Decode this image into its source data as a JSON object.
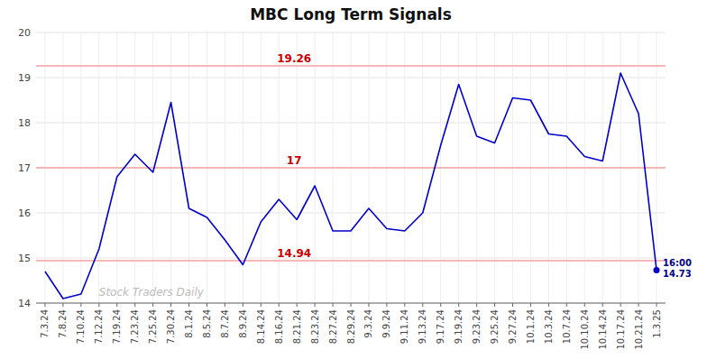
{
  "chart_data": {
    "type": "line",
    "title": "MBC Long Term Signals",
    "categories": [
      "7.3.24",
      "7.8.24",
      "7.10.24",
      "7.12.24",
      "7.19.24",
      "7.23.24",
      "7.25.24",
      "7.30.24",
      "8.1.24",
      "8.5.24",
      "8.7.24",
      "8.9.24",
      "8.14.24",
      "8.16.24",
      "8.21.24",
      "8.23.24",
      "8.27.24",
      "8.29.24",
      "9.3.24",
      "9.9.24",
      "9.11.24",
      "9.13.24",
      "9.17.24",
      "9.19.24",
      "9.23.24",
      "9.25.24",
      "9.27.24",
      "10.1.24",
      "10.3.24",
      "10.7.24",
      "10.10.24",
      "10.14.24",
      "10.17.24",
      "10.21.24",
      "1.3.25"
    ],
    "values": [
      14.7,
      14.1,
      14.2,
      15.2,
      16.8,
      17.3,
      16.9,
      18.45,
      16.1,
      15.9,
      15.4,
      14.85,
      15.8,
      16.3,
      15.85,
      16.6,
      15.6,
      15.6,
      16.1,
      15.65,
      15.6,
      16.0,
      17.5,
      18.85,
      17.7,
      17.55,
      18.55,
      18.5,
      17.75,
      17.7,
      17.25,
      17.15,
      19.1,
      18.2,
      14.73
    ],
    "color": "#0000cc",
    "reference_lines": [
      {
        "value": 19.26,
        "label": "19.26",
        "color": "#f5a0a0",
        "label_color": "#cc0000"
      },
      {
        "value": 17,
        "label": "17",
        "color": "#f5a0a0",
        "label_color": "#cc0000"
      },
      {
        "value": 14.94,
        "label": "14.94",
        "color": "#f5a0a0",
        "label_color": "#cc0000"
      }
    ],
    "annotations": [
      "16:00",
      "14.73"
    ],
    "watermark": "Stock Traders Daily",
    "ylim": [
      14,
      20
    ],
    "yticks": [
      14,
      15,
      16,
      17,
      18,
      19,
      20
    ],
    "grid": true
  }
}
